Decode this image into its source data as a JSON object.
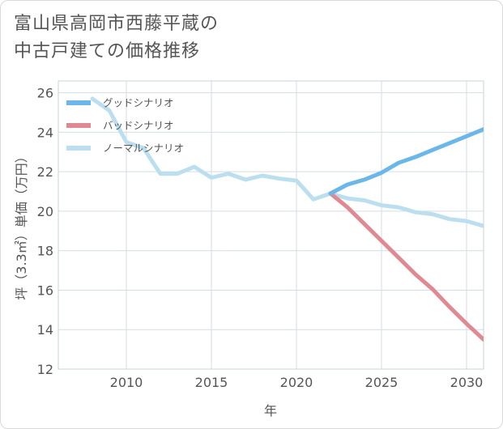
{
  "title_lines": [
    "富山県高岡市西藤平蔵の",
    "中古戸建ての価格推移"
  ],
  "chart_data": {
    "type": "line",
    "xlabel": "年",
    "ylabel": "坪（3.3㎡）単価（万円）",
    "xlim": [
      2006,
      2031
    ],
    "ylim": [
      12,
      26.6
    ],
    "xticks": [
      2010,
      2015,
      2020,
      2025,
      2030
    ],
    "yticks": [
      12,
      14,
      16,
      18,
      20,
      22,
      24,
      26
    ],
    "grid": true,
    "legend_position": "top-left",
    "series": [
      {
        "name": "グッドシナリオ",
        "color": "#6cb7ea",
        "x": [
          2022,
          2023,
          2024,
          2025,
          2026,
          2027,
          2028,
          2029,
          2030,
          2031
        ],
        "y": [
          20.9,
          21.35,
          21.6,
          21.95,
          22.45,
          22.75,
          23.1,
          23.45,
          23.8,
          24.15
        ]
      },
      {
        "name": "バッドシナリオ",
        "color": "#df8a92",
        "x": [
          2022,
          2023,
          2024,
          2025,
          2026,
          2027,
          2028,
          2029,
          2030,
          2031
        ],
        "y": [
          20.9,
          20.2,
          19.35,
          18.5,
          17.65,
          16.8,
          16.05,
          15.15,
          14.3,
          13.5
        ]
      },
      {
        "name": "ノーマルシナリオ",
        "color": "#bcdff0",
        "x": [
          2008,
          2009,
          2010,
          2011,
          2012,
          2013,
          2014,
          2015,
          2016,
          2017,
          2018,
          2019,
          2020,
          2021,
          2022,
          2023,
          2024,
          2025,
          2026,
          2027,
          2028,
          2029,
          2030,
          2031
        ],
        "y": [
          25.7,
          25.1,
          23.5,
          23.2,
          21.9,
          21.9,
          22.25,
          21.7,
          21.9,
          21.6,
          21.8,
          21.65,
          21.55,
          20.6,
          20.9,
          20.65,
          20.55,
          20.3,
          20.2,
          19.95,
          19.85,
          19.6,
          19.5,
          19.25
        ]
      }
    ]
  }
}
